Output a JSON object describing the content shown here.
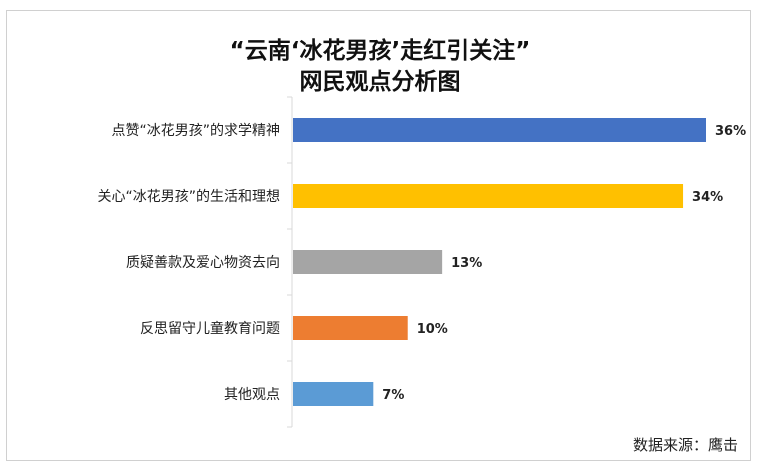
{
  "chart_data": {
    "type": "bar",
    "orientation": "horizontal",
    "title_line1": "“云南‘冰花男孩’走红引关注”",
    "title_line2": "网民观点分析图",
    "categories": [
      "点赞“冰花男孩”的求学精神",
      "关心“冰花男孩”的生活和理想",
      "质疑善款及爱心物资去向",
      "反思留守儿童教育问题",
      "其他观点"
    ],
    "values": [
      36,
      34,
      13,
      10,
      7
    ],
    "value_labels": [
      "36%",
      "34%",
      "13%",
      "10%",
      "7%"
    ],
    "unit": "%",
    "xlim": [
      0,
      38
    ],
    "colors": [
      "#4472c4",
      "#ffc000",
      "#a5a5a5",
      "#ed7d31",
      "#5b9bd5"
    ],
    "grid": false,
    "legend": "none"
  },
  "source": "数据来源：鹰击"
}
